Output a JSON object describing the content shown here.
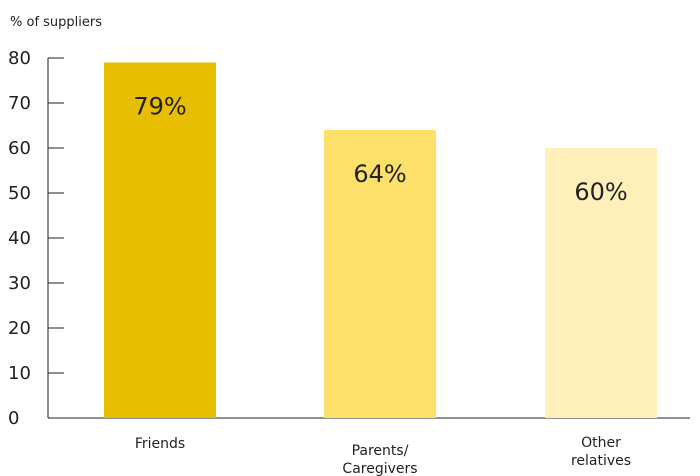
{
  "chart_data": {
    "type": "bar",
    "ylabel": "% of suppliers",
    "categories": [
      [
        "Friends"
      ],
      [
        "Parents/",
        "Caregivers"
      ],
      [
        "Other",
        "relatives"
      ]
    ],
    "values": [
      79,
      64,
      60
    ],
    "data_labels": [
      "79%",
      "64%",
      "60%"
    ],
    "ylim": [
      0,
      80
    ],
    "yticks": [
      0,
      10,
      20,
      30,
      40,
      50,
      60,
      70,
      80
    ],
    "grid": false,
    "bar_colors": [
      "#e8bf00",
      "#fde06a",
      "#fef0b8"
    ],
    "axis_color": "#222222"
  }
}
